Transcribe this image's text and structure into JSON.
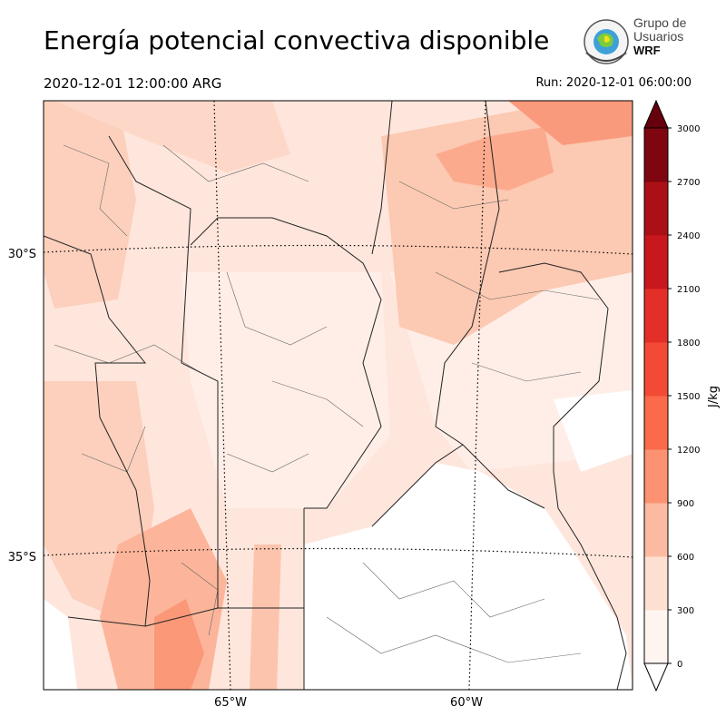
{
  "header": {
    "title": "Energía potencial convectiva disponible",
    "valid_time": "2020-12-01 12:00:00 ARG",
    "run_time": "Run: 2020-12-01 06:00:00"
  },
  "logo": {
    "line1": "Grupo de",
    "line2": "Usuarios",
    "line3": "WRF"
  },
  "map": {
    "lat_labels": [
      "30°S",
      "35°S"
    ],
    "lon_labels": [
      "65°W",
      "60°W"
    ]
  },
  "colorbar": {
    "unit": "J/kg",
    "ticks": [
      "0",
      "300",
      "600",
      "900",
      "1200",
      "1500",
      "1800",
      "2100",
      "2400",
      "2700",
      "3000"
    ],
    "colors": [
      "#fff5f0",
      "#fee0d2",
      "#fcbba1",
      "#fc9272",
      "#fb6a4a",
      "#f34a36",
      "#e32f27",
      "#c9181d",
      "#ab1016",
      "#7f0610"
    ],
    "extend_top_color": "#67000d"
  }
}
